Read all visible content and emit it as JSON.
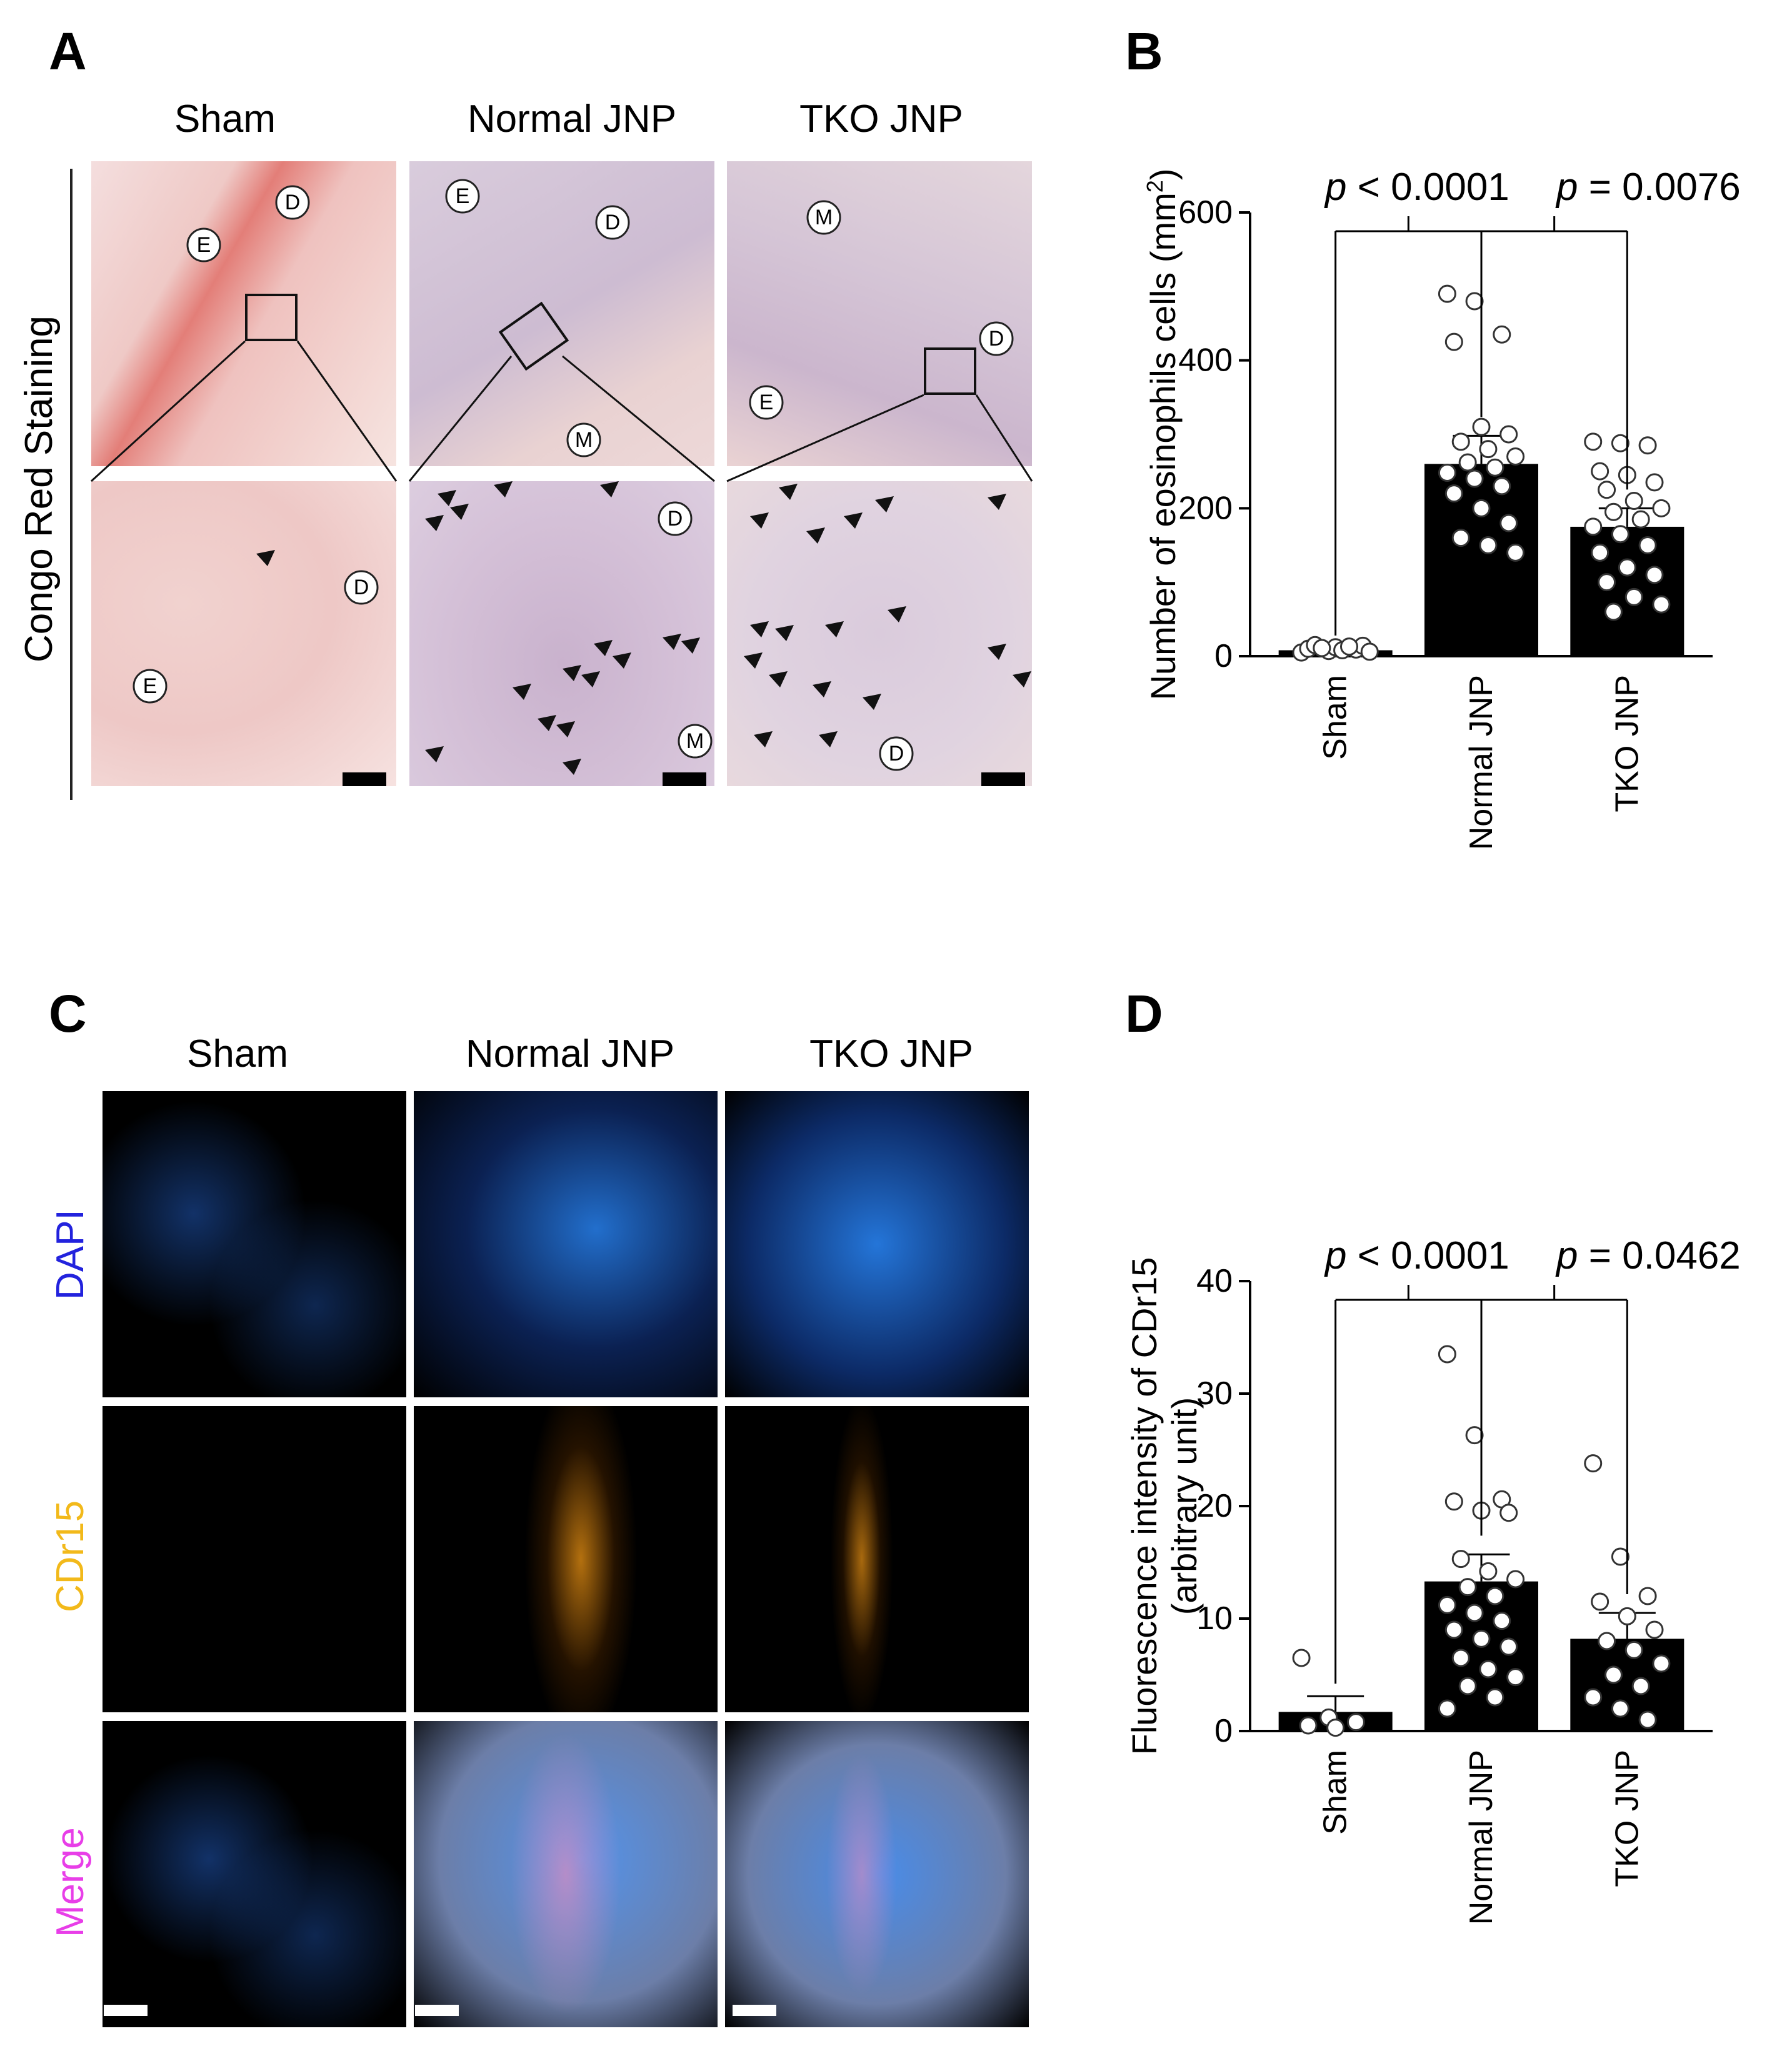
{
  "panels": {
    "A": {
      "letter": "A",
      "columns": [
        "Sham",
        "Normal JNP",
        "TKO JNP"
      ],
      "row_label": "Congo Red Staining",
      "annotations": {
        "E": "E",
        "D": "D",
        "M": "M"
      }
    },
    "B": {
      "letter": "B"
    },
    "C": {
      "letter": "C",
      "columns": [
        "Sham",
        "Normal JNP",
        "TKO JNP"
      ],
      "rows": [
        {
          "label": "DAPI",
          "color": "#2222dd"
        },
        {
          "label": "CDr15",
          "color": "#f2b91a"
        },
        {
          "label": "Merge",
          "color": "#e83ee8"
        }
      ]
    },
    "D": {
      "letter": "D"
    }
  },
  "chart_data": [
    {
      "type": "bar",
      "panel": "B",
      "categories": [
        "Sham",
        "Normal JNP",
        "TKO JNP"
      ],
      "values": [
        8,
        260,
        175
      ],
      "errors": [
        3,
        38,
        25
      ],
      "ylabel": "Number  of eosinophils cells (mm",
      "ylabel_sup": "2",
      "ylabel_end": ")",
      "ylim": [
        0,
        600
      ],
      "yticks": [
        0,
        200,
        400,
        600
      ],
      "comparisons": [
        {
          "p_prefix": "p",
          "p_text": " < 0.0001",
          "from": 0,
          "to": 1
        },
        {
          "p_prefix": "p",
          "p_text": " = 0.0076",
          "from": 1,
          "to": 2
        }
      ],
      "points": [
        [
          5,
          7,
          9,
          10,
          12,
          14,
          15,
          8,
          6,
          11,
          13
        ],
        [
          490,
          480,
          435,
          425,
          310,
          300,
          290,
          280,
          270,
          262,
          255,
          248,
          240,
          230,
          220,
          200,
          180,
          160,
          150,
          140
        ],
        [
          290,
          288,
          285,
          250,
          245,
          235,
          225,
          210,
          200,
          195,
          185,
          175,
          165,
          150,
          140,
          120,
          110,
          100,
          80,
          70,
          60
        ]
      ],
      "bar_color": "#000000"
    },
    {
      "type": "bar",
      "panel": "D",
      "categories": [
        "Sham",
        "Normal JNP",
        "TKO JNP"
      ],
      "values": [
        1.7,
        13.3,
        8.2
      ],
      "errors": [
        1.4,
        2.4,
        2.3
      ],
      "ylabel": "Fluorescence intensity of CDr15",
      "ylabel2": "(arbitrary unit)",
      "ylim": [
        0,
        40
      ],
      "yticks": [
        0,
        10,
        20,
        30,
        40
      ],
      "comparisons": [
        {
          "p_prefix": "p",
          "p_text": " < 0.0001",
          "from": 0,
          "to": 1
        },
        {
          "p_prefix": "p",
          "p_text": " = 0.0462",
          "from": 1,
          "to": 2
        }
      ],
      "points": [
        [
          6.5,
          1.2,
          0.8,
          0.5,
          0.3
        ],
        [
          33.5,
          26.3,
          20.6,
          20.4,
          19.6,
          19.4,
          15.3,
          14.2,
          13.5,
          12.8,
          12.0,
          11.2,
          10.5,
          9.8,
          9.0,
          8.2,
          7.5,
          6.5,
          5.5,
          4.8,
          4.0,
          3.0,
          2.0
        ],
        [
          23.8,
          15.5,
          12.0,
          11.5,
          10.2,
          9.0,
          8.0,
          7.2,
          6.0,
          5.0,
          4.0,
          3.0,
          2.0,
          1.0
        ]
      ],
      "bar_color": "#000000"
    }
  ]
}
